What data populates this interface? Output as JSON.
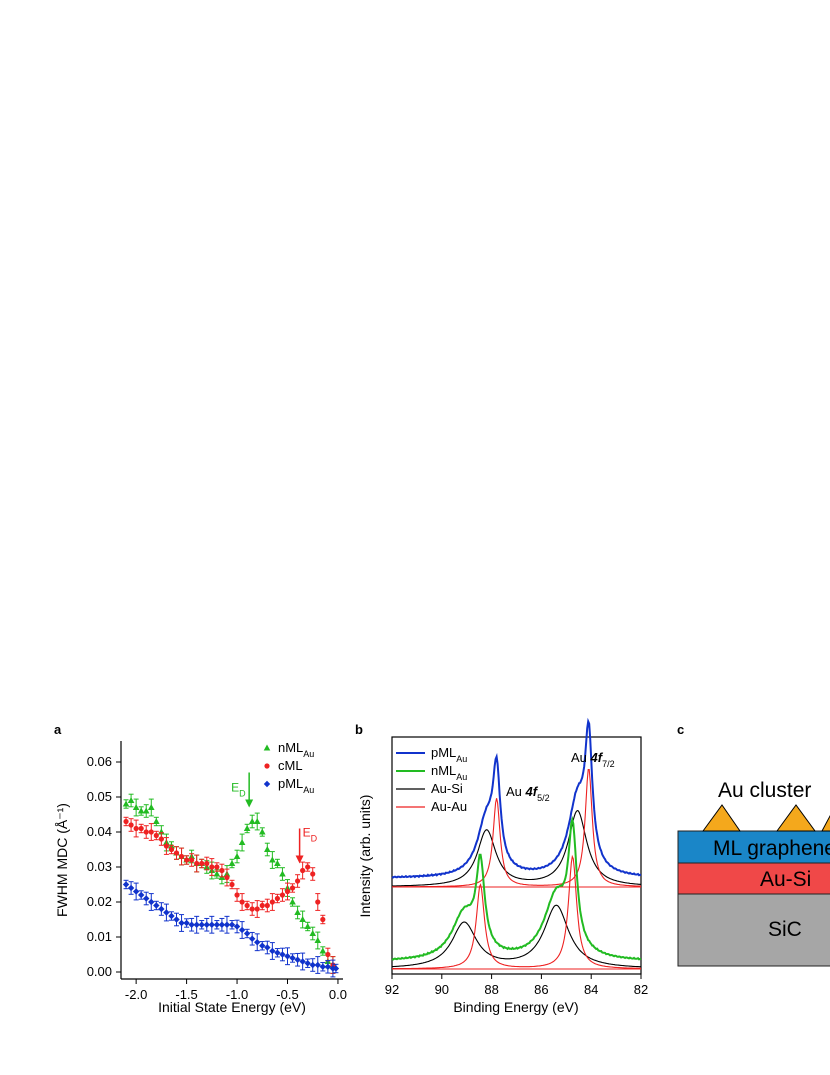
{
  "panels": {
    "a": "a",
    "b": "b",
    "c": "c"
  },
  "chart_data": [
    {
      "type": "scatter",
      "panel": "a",
      "xlabel": "Initial State Energy (eV)",
      "ylabel": "FWHM MDC (Å⁻¹)",
      "xlim": [
        -2.15,
        0.05
      ],
      "ylim": [
        -0.002,
        0.066
      ],
      "xticks": [
        -2.0,
        -1.5,
        -1.0,
        -0.5,
        0.0
      ],
      "xtick_labels": [
        "-2.0",
        "-1.5",
        "-1.0",
        "-0.5",
        "0.0"
      ],
      "yticks": [
        0.0,
        0.01,
        0.02,
        0.03,
        0.04,
        0.05,
        0.06
      ],
      "ytick_labels": [
        "0.00",
        "0.01",
        "0.02",
        "0.03",
        "0.04",
        "0.05",
        "0.06"
      ],
      "legend_position": "top-right",
      "series": [
        {
          "name_main": "nML",
          "name_sub": "Au",
          "marker": "triangle",
          "color": "#22bb22",
          "x": [
            -2.1,
            -2.05,
            -2.0,
            -1.95,
            -1.9,
            -1.85,
            -1.8,
            -1.75,
            -1.7,
            -1.65,
            -1.6,
            -1.55,
            -1.5,
            -1.45,
            -1.4,
            -1.35,
            -1.3,
            -1.25,
            -1.2,
            -1.15,
            -1.1,
            -1.05,
            -1.0,
            -0.95,
            -0.9,
            -0.85,
            -0.8,
            -0.75,
            -0.7,
            -0.65,
            -0.6,
            -0.55,
            -0.5,
            -0.45,
            -0.4,
            -0.35,
            -0.3,
            -0.25,
            -0.2,
            -0.15,
            -0.1,
            -0.05
          ],
          "y": [
            0.048,
            0.049,
            0.047,
            0.046,
            0.046,
            0.047,
            0.043,
            0.04,
            0.037,
            0.036,
            0.034,
            0.033,
            0.032,
            0.033,
            0.031,
            0.031,
            0.03,
            0.029,
            0.028,
            0.027,
            0.028,
            0.031,
            0.033,
            0.037,
            0.041,
            0.043,
            0.043,
            0.04,
            0.035,
            0.032,
            0.031,
            0.028,
            0.024,
            0.02,
            0.017,
            0.015,
            0.013,
            0.011,
            0.009,
            0.006,
            0.003,
            0.002
          ]
        },
        {
          "name_main": "cML",
          "name_sub": "",
          "marker": "circle",
          "color": "#ee2222",
          "x": [
            -2.1,
            -2.05,
            -2.0,
            -1.95,
            -1.9,
            -1.85,
            -1.8,
            -1.75,
            -1.7,
            -1.65,
            -1.6,
            -1.55,
            -1.5,
            -1.45,
            -1.4,
            -1.35,
            -1.3,
            -1.25,
            -1.2,
            -1.15,
            -1.1,
            -1.05,
            -1.0,
            -0.95,
            -0.9,
            -0.85,
            -0.8,
            -0.75,
            -0.7,
            -0.65,
            -0.6,
            -0.55,
            -0.5,
            -0.45,
            -0.4,
            -0.35,
            -0.3,
            -0.25,
            -0.2,
            -0.15,
            -0.1,
            -0.05
          ],
          "y": [
            0.043,
            0.042,
            0.041,
            0.041,
            0.04,
            0.04,
            0.039,
            0.038,
            0.036,
            0.035,
            0.034,
            0.033,
            0.032,
            0.032,
            0.031,
            0.031,
            0.031,
            0.03,
            0.03,
            0.029,
            0.027,
            0.025,
            0.022,
            0.02,
            0.019,
            0.018,
            0.018,
            0.019,
            0.019,
            0.02,
            0.021,
            0.022,
            0.023,
            0.024,
            0.026,
            0.029,
            0.03,
            0.028,
            0.02,
            0.015,
            0.005,
            0.002
          ]
        },
        {
          "name_main": "pML",
          "name_sub": "Au",
          "marker": "diamond",
          "color": "#1133cc",
          "x": [
            -2.1,
            -2.05,
            -2.0,
            -1.95,
            -1.9,
            -1.85,
            -1.8,
            -1.75,
            -1.7,
            -1.65,
            -1.6,
            -1.55,
            -1.5,
            -1.45,
            -1.4,
            -1.35,
            -1.3,
            -1.25,
            -1.2,
            -1.15,
            -1.1,
            -1.05,
            -1.0,
            -0.95,
            -0.9,
            -0.85,
            -0.8,
            -0.75,
            -0.7,
            -0.65,
            -0.6,
            -0.55,
            -0.5,
            -0.45,
            -0.4,
            -0.35,
            -0.3,
            -0.25,
            -0.2,
            -0.15,
            -0.1,
            -0.05,
            -0.02
          ],
          "y": [
            0.025,
            0.024,
            0.023,
            0.022,
            0.021,
            0.02,
            0.019,
            0.018,
            0.017,
            0.016,
            0.015,
            0.014,
            0.014,
            0.0135,
            0.0135,
            0.0135,
            0.0135,
            0.0135,
            0.0135,
            0.0135,
            0.0135,
            0.0135,
            0.013,
            0.012,
            0.011,
            0.0095,
            0.0085,
            0.0075,
            0.007,
            0.006,
            0.0055,
            0.005,
            0.0045,
            0.004,
            0.0035,
            0.003,
            0.0025,
            0.002,
            0.002,
            0.0015,
            0.0015,
            0.001,
            0.001
          ]
        }
      ],
      "annotations": [
        {
          "text_main": "E",
          "text_sub": "D",
          "color": "#22bb22",
          "arrow_x": -0.88,
          "arrow_y_from": 0.057,
          "arrow_y_to": 0.047
        },
        {
          "text_main": "E",
          "text_sub": "D",
          "color": "#ee2222",
          "arrow_x": -0.38,
          "arrow_y_from": 0.041,
          "arrow_y_to": 0.031
        }
      ]
    },
    {
      "type": "line",
      "panel": "b",
      "xlabel": "Binding Energy (eV)",
      "ylabel": "Intensity (arb. units)",
      "xlim": [
        92,
        82
      ],
      "x_reversed": true,
      "xticks": [
        92,
        90,
        88,
        86,
        84,
        82
      ],
      "xtick_labels": [
        "92",
        "90",
        "88",
        "86",
        "84",
        "82"
      ],
      "legend_position": "top-left",
      "legend": [
        {
          "main": "pML",
          "sub": "Au",
          "color": "#1133cc"
        },
        {
          "main": "nML",
          "sub": "Au",
          "color": "#22bb22"
        },
        {
          "main": "Au-Si",
          "sub": "",
          "color": "#000000"
        },
        {
          "main": "Au-Au",
          "sub": "",
          "color": "#ee2222"
        }
      ],
      "peak_labels": [
        {
          "prefix": "Au ",
          "italic": "4f",
          "sub": "7/2",
          "energy": 84.2
        },
        {
          "prefix": "Au ",
          "italic": "4f",
          "sub": "5/2",
          "energy": 87.3
        }
      ],
      "spectra": [
        {
          "name": "pML_Au",
          "baseline": 0.18,
          "total_color": "#1133cc",
          "components": [
            {
              "kind": "Au-Si",
              "color": "#000000",
              "peaks": [
                {
                  "e": 84.55,
                  "a": 0.35,
                  "w": 0.45
                },
                {
                  "e": 88.2,
                  "a": 0.26,
                  "w": 0.45
                }
              ]
            },
            {
              "kind": "Au-Au",
              "color": "#ee2222",
              "peaks": [
                {
                  "e": 84.1,
                  "a": 0.55,
                  "w": 0.17
                },
                {
                  "e": 87.8,
                  "a": 0.41,
                  "w": 0.17
                }
              ]
            }
          ]
        },
        {
          "name": "nML_Au",
          "baseline": 0.12,
          "total_color": "#22bb22",
          "components": [
            {
              "kind": "Au-Si",
              "color": "#000000",
              "peaks": [
                {
                  "e": 85.4,
                  "a": 0.29,
                  "w": 0.6
                },
                {
                  "e": 89.1,
                  "a": 0.21,
                  "w": 0.6
                }
              ]
            },
            {
              "kind": "Au-Au",
              "color": "#ee2222",
              "peaks": [
                {
                  "e": 84.75,
                  "a": 0.52,
                  "w": 0.2
                },
                {
                  "e": 88.45,
                  "a": 0.39,
                  "w": 0.2
                }
              ]
            }
          ]
        }
      ]
    }
  ],
  "schematic": {
    "cluster_label": "Au cluster",
    "layers": [
      {
        "label": "ML graphene",
        "color": "#1a86c8"
      },
      {
        "label": "Au-Si",
        "color": "#f04848"
      },
      {
        "label": "SiC",
        "color": "#a6a6a6"
      }
    ],
    "cluster_color": "#f4a81c"
  }
}
